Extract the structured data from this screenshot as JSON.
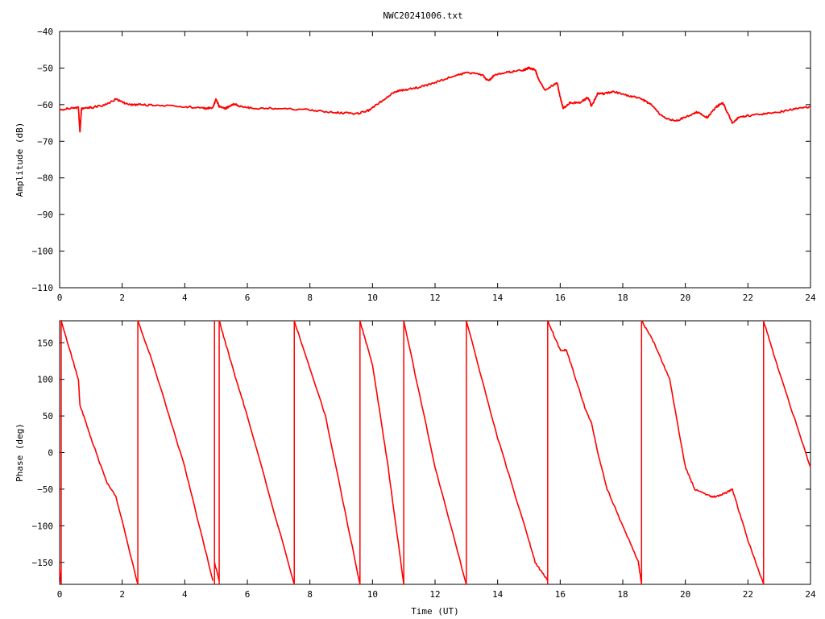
{
  "title": "NWC20241006.txt",
  "colors": {
    "series": "#ff0000",
    "axis": "#000000",
    "background": "#ffffff"
  },
  "chart_data": [
    {
      "type": "line",
      "panel": "amplitude",
      "xlabel": "",
      "ylabel": "Amplitude (dB)",
      "xlim": [
        0,
        24
      ],
      "ylim": [
        -110,
        -40
      ],
      "xticks": [
        "0",
        "2",
        "4",
        "6",
        "8",
        "10",
        "12",
        "14",
        "16",
        "18",
        "20",
        "22",
        "24"
      ],
      "yticks": [
        "-40",
        "-50",
        "-60",
        "-70",
        "-80",
        "-90",
        "-100",
        "-110"
      ],
      "grid": false,
      "x": [
        0,
        0.3,
        0.6,
        0.65,
        0.7,
        1.0,
        1.4,
        1.8,
        2.2,
        2.6,
        3.0,
        4.0,
        4.6,
        4.9,
        5.0,
        5.1,
        5.3,
        5.6,
        5.8,
        6.2,
        7.0,
        8.0,
        8.5,
        9.0,
        9.5,
        9.9,
        10.3,
        10.7,
        11.0,
        11.5,
        12.0,
        12.5,
        13.0,
        13.5,
        13.7,
        13.9,
        14.3,
        14.8,
        15.0,
        15.2,
        15.3,
        15.5,
        15.9,
        16.0,
        16.1,
        16.3,
        16.6,
        16.9,
        17.0,
        17.2,
        17.4,
        17.7,
        18.2,
        18.6,
        18.9,
        19.3,
        19.7,
        20.1,
        20.4,
        20.7,
        21.0,
        21.2,
        21.5,
        21.7,
        22.0,
        22.5,
        23.0,
        23.5,
        24.0
      ],
      "y": [
        -61.5,
        -61,
        -60.8,
        -67.5,
        -61,
        -60.8,
        -60.2,
        -58.5,
        -60,
        -60,
        -60.2,
        -60.5,
        -61,
        -60.8,
        -58.5,
        -60.5,
        -61,
        -59.8,
        -60.5,
        -61,
        -61,
        -61.5,
        -62,
        -62.2,
        -62.5,
        -61.5,
        -59,
        -56.5,
        -56,
        -55.2,
        -54,
        -52.5,
        -51.2,
        -51.8,
        -53.5,
        -52,
        -51.2,
        -50.6,
        -50,
        -50.5,
        -53,
        -56,
        -54,
        -58,
        -61,
        -59.5,
        -59.5,
        -58,
        -60.5,
        -57,
        -57,
        -56.5,
        -57.5,
        -58.5,
        -60,
        -63.5,
        -64.5,
        -63,
        -62,
        -63.5,
        -60.5,
        -59.5,
        -65,
        -63.5,
        -63,
        -62.5,
        -62,
        -61.2,
        -60.5
      ]
    },
    {
      "type": "line",
      "panel": "phase",
      "xlabel": "Time (UT)",
      "ylabel": "Phase (deg)",
      "xlim": [
        0,
        24
      ],
      "ylim": [
        -180,
        180
      ],
      "xticks": [
        "0",
        "2",
        "4",
        "6",
        "8",
        "10",
        "12",
        "14",
        "16",
        "18",
        "20",
        "22",
        "24"
      ],
      "yticks": [
        "150",
        "100",
        "50",
        "0",
        "-50",
        "-100",
        "-150"
      ],
      "grid": false,
      "segments": [
        {
          "x": [
            0.0,
            0.05
          ],
          "y": [
            -160,
            -180
          ]
        },
        {
          "x": [
            0.05,
            0.6,
            0.65,
            1.0,
            1.5,
            1.8,
            2.5
          ],
          "y": [
            180,
            100,
            65,
            20,
            -40,
            -60,
            -180
          ]
        },
        {
          "x": [
            2.5,
            3.0,
            4.0,
            4.9
          ],
          "y": [
            180,
            120,
            -20,
            -175
          ]
        },
        {
          "x": [
            4.95,
            5.1
          ],
          "y": [
            -150,
            -175
          ]
        },
        {
          "x": [
            5.1,
            5.5,
            6.0,
            7.5
          ],
          "y": [
            180,
            120,
            50,
            -180
          ]
        },
        {
          "x": [
            7.5,
            8.5,
            9.6
          ],
          "y": [
            180,
            50,
            -180
          ]
        },
        {
          "x": [
            9.6,
            10.0,
            10.5,
            11.0
          ],
          "y": [
            180,
            120,
            -20,
            -180
          ]
        },
        {
          "x": [
            11.0,
            12.0,
            13.0
          ],
          "y": [
            180,
            -20,
            -180
          ]
        },
        {
          "x": [
            13.0,
            14.0,
            15.0,
            15.2,
            15.6
          ],
          "y": [
            180,
            20,
            -120,
            -150,
            -175
          ]
        },
        {
          "x": [
            15.6,
            16.0,
            16.2,
            16.5,
            16.8,
            17.0,
            17.2,
            17.5,
            18.0,
            18.5,
            18.6
          ],
          "y": [
            180,
            140,
            140,
            100,
            60,
            40,
            0,
            -50,
            -100,
            -150,
            -180
          ]
        },
        {
          "x": [
            18.6,
            19.0,
            19.5,
            20.0,
            20.3,
            20.8,
            21.0,
            21.3,
            21.5,
            22.0,
            22.5
          ],
          "y": [
            180,
            150,
            100,
            -20,
            -50,
            -60,
            -60,
            -55,
            -50,
            -120,
            -180
          ]
        },
        {
          "x": [
            22.5,
            23.0,
            24.0
          ],
          "y": [
            180,
            110,
            -20
          ]
        }
      ],
      "vertical_lines_x": [
        0.05,
        2.5,
        4.95,
        5.1,
        7.5,
        9.6,
        11.0,
        13.0,
        15.6,
        18.6,
        22.5
      ]
    }
  ]
}
